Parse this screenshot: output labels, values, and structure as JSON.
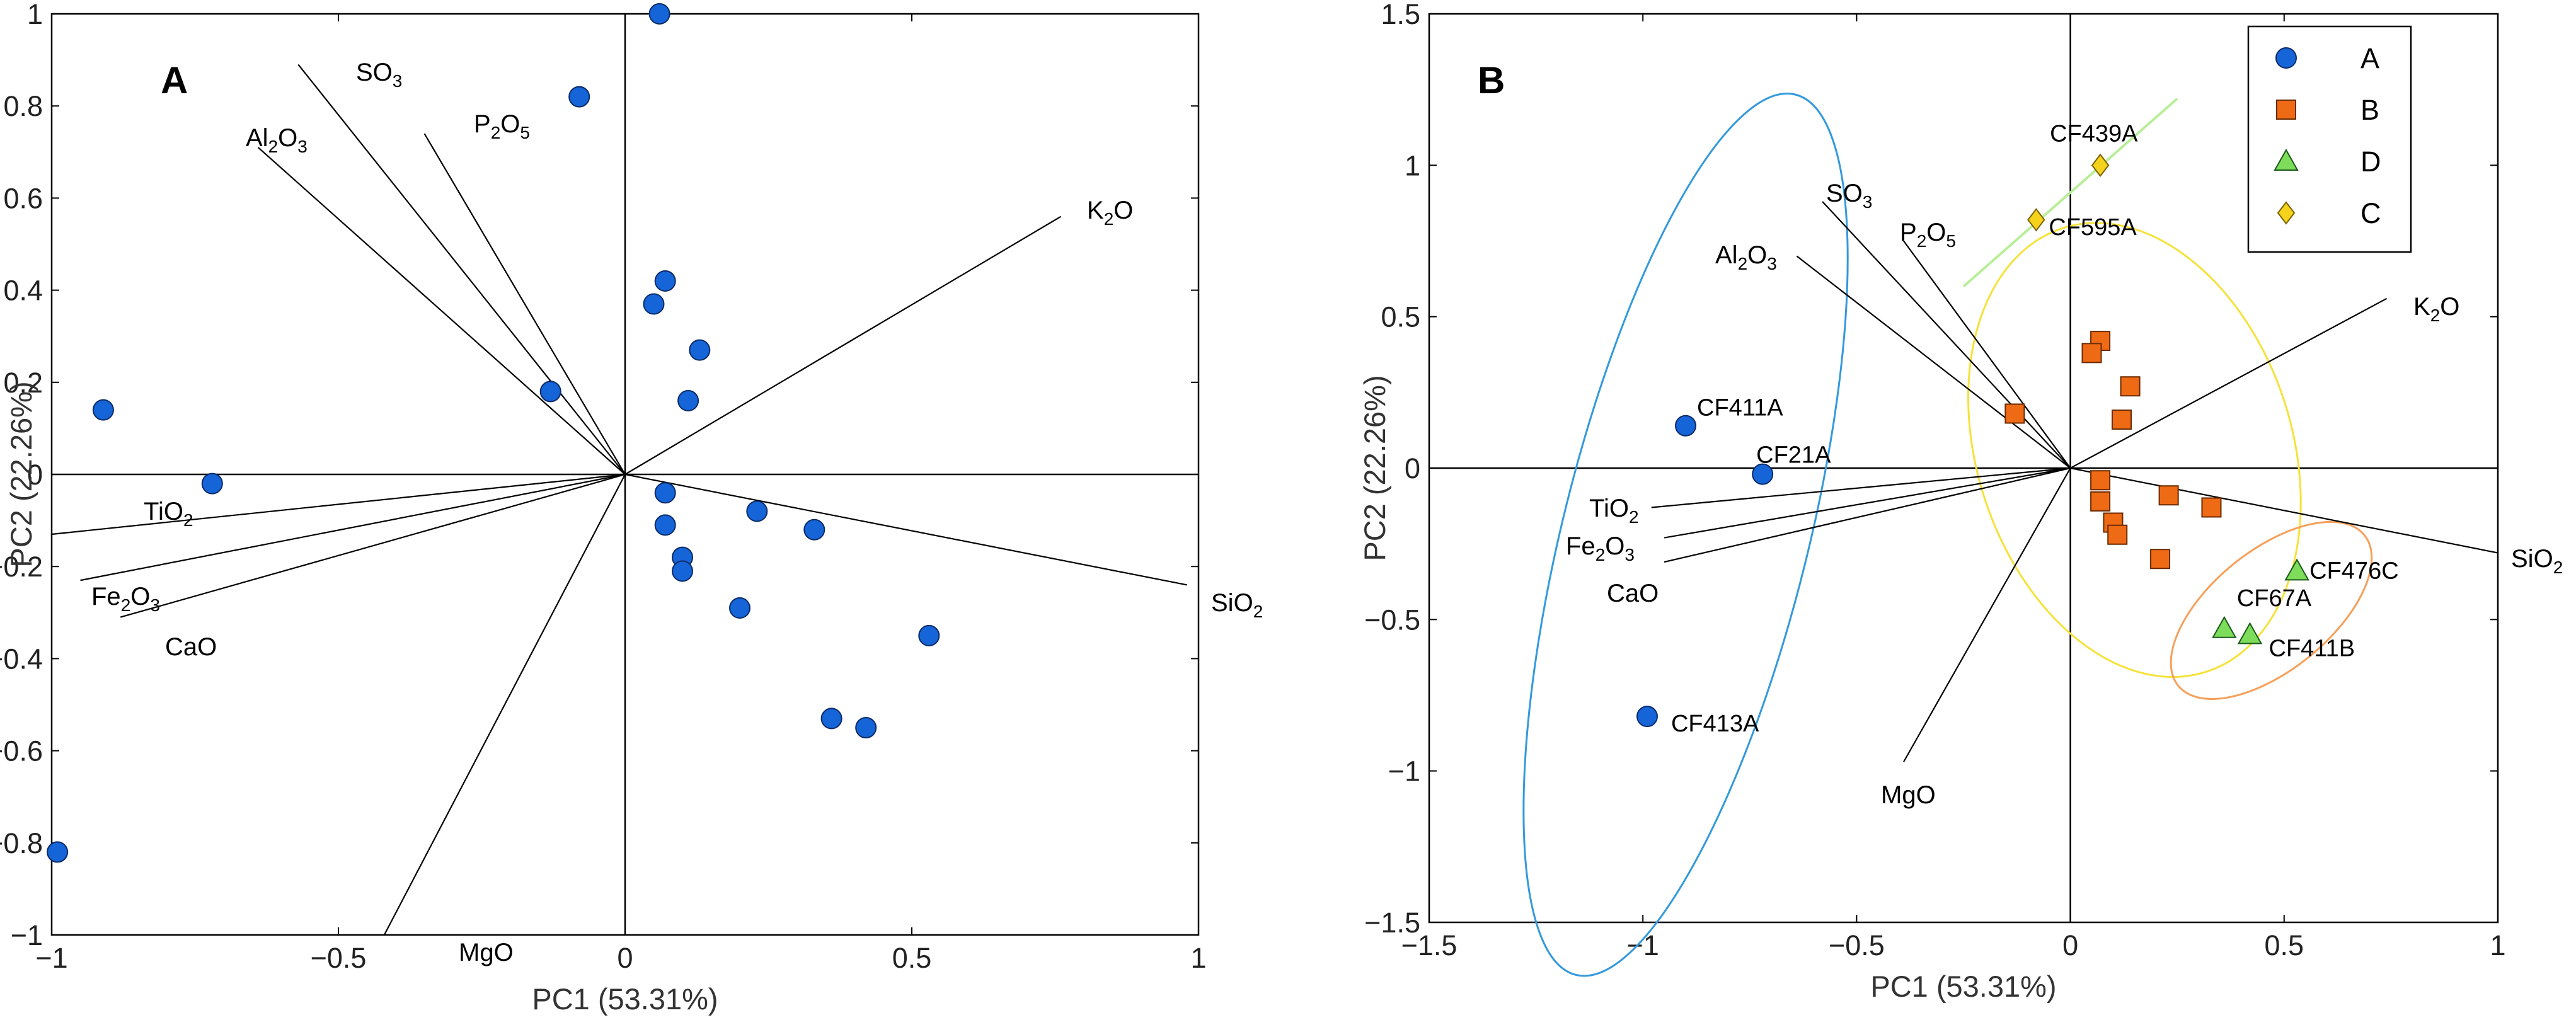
{
  "colors": {
    "A": "#1565d8",
    "B": "#ee6a14",
    "D": "#7ddc5a",
    "C": "#f5d21c",
    "ellipse_A": "#3399dd",
    "ellipse_B": "#f5e23a",
    "ellipse_D": "#f5a05a",
    "line_C": "#b8ee98",
    "axis": "#000000"
  },
  "chart_data": [
    {
      "type": "scatter",
      "panel": "A",
      "xlabel": "PC1 (53.31%)",
      "ylabel": "PC2 (22.26%)",
      "xlim": [
        -1,
        1
      ],
      "ylim": [
        -1,
        1
      ],
      "xticks": [
        -1,
        -0.5,
        0,
        0.5,
        1
      ],
      "xtick_labels": [
        "−1",
        "−0.5",
        "0",
        "0.5",
        "1"
      ],
      "yticks": [
        -1,
        -0.8,
        -0.6,
        -0.4,
        -0.2,
        0,
        0.2,
        0.4,
        0.6,
        0.8,
        1
      ],
      "ytick_labels": [
        "−1",
        "−0.8",
        "−0.6",
        "−0.4",
        "−0.2",
        "0",
        "0.2",
        "0.4",
        "0.6",
        "0.8",
        "1"
      ],
      "loadings": [
        {
          "name": "SO",
          "sub": "3",
          "x": -0.57,
          "y": 0.89
        },
        {
          "name": "P",
          "sub": "2",
          "tail": "O",
          "sub2": "5",
          "x": -0.35,
          "y": 0.74
        },
        {
          "name": "Al",
          "sub": "2",
          "tail": "O",
          "sub2": "3",
          "x": -0.64,
          "y": 0.71
        },
        {
          "name": "K",
          "sub": "2",
          "tail": "O",
          "x": 0.76,
          "y": 0.56
        },
        {
          "name": "TiO",
          "sub": "2",
          "x": -1.0,
          "y": -0.13
        },
        {
          "name": "Fe",
          "sub": "2",
          "tail": "O",
          "sub2": "3",
          "x": -0.95,
          "y": -0.23
        },
        {
          "name": "CaO",
          "x": -0.88,
          "y": -0.31
        },
        {
          "name": "SiO",
          "sub": "2",
          "x": 0.98,
          "y": -0.24
        },
        {
          "name": "MgO",
          "x": -0.42,
          "y": -1.0
        }
      ],
      "series": [
        {
          "group": "A",
          "points": [
            {
              "x": 0.06,
              "y": 1.0
            },
            {
              "x": -0.08,
              "y": 0.82
            },
            {
              "x": 0.07,
              "y": 0.42
            },
            {
              "x": 0.05,
              "y": 0.37
            },
            {
              "x": 0.13,
              "y": 0.27
            },
            {
              "x": -0.13,
              "y": 0.18
            },
            {
              "x": 0.11,
              "y": 0.16
            },
            {
              "x": -0.91,
              "y": 0.14
            },
            {
              "x": -0.72,
              "y": -0.02
            },
            {
              "x": 0.07,
              "y": -0.04
            },
            {
              "x": 0.23,
              "y": -0.08
            },
            {
              "x": 0.07,
              "y": -0.11
            },
            {
              "x": 0.33,
              "y": -0.12
            },
            {
              "x": 0.1,
              "y": -0.18
            },
            {
              "x": 0.1,
              "y": -0.21
            },
            {
              "x": 0.2,
              "y": -0.29
            },
            {
              "x": 0.53,
              "y": -0.35
            },
            {
              "x": 0.36,
              "y": -0.53
            },
            {
              "x": 0.42,
              "y": -0.55
            },
            {
              "x": -0.99,
              "y": -0.82
            }
          ]
        }
      ]
    },
    {
      "type": "scatter",
      "panel": "B",
      "xlabel": "PC1 (53.31%)",
      "ylabel": "PC2 (22.26%)",
      "xlim": [
        -1.5,
        1
      ],
      "ylim": [
        -1.5,
        1.5
      ],
      "xticks": [
        -1.5,
        -1,
        -0.5,
        0,
        0.5,
        1
      ],
      "xtick_labels": [
        "−1.5",
        "−1",
        "−0.5",
        "0",
        "0.5",
        "1"
      ],
      "yticks": [
        -1.5,
        -1,
        -0.5,
        0,
        0.5,
        1,
        1.5
      ],
      "ytick_labels": [
        "−1.5",
        "−1",
        "−0.5",
        "0",
        "0.5",
        "1",
        "1.5"
      ],
      "legend_position": "top-right",
      "loadings": [
        {
          "name": "SO",
          "sub": "3",
          "x": -0.58,
          "y": 0.88
        },
        {
          "name": "P",
          "sub": "2",
          "tail": "O",
          "sub2": "5",
          "x": -0.39,
          "y": 0.75
        },
        {
          "name": "Al",
          "sub": "2",
          "tail": "O",
          "sub2": "3",
          "x": -0.64,
          "y": 0.7
        },
        {
          "name": "K",
          "sub": "2",
          "tail": "O",
          "x": 0.74,
          "y": 0.56
        },
        {
          "name": "TiO",
          "sub": "2",
          "x": -0.98,
          "y": -0.13
        },
        {
          "name": "Fe",
          "sub": "2",
          "tail": "O",
          "sub2": "3",
          "x": -0.95,
          "y": -0.23
        },
        {
          "name": "CaO",
          "x": -0.95,
          "y": -0.31
        },
        {
          "name": "SiO",
          "sub": "2",
          "x": 1.0,
          "y": -0.28
        },
        {
          "name": "MgO",
          "x": -0.39,
          "y": -0.97
        }
      ],
      "series": [
        {
          "name": "A",
          "marker": "circle",
          "points": [
            {
              "x": -0.9,
              "y": 0.14,
              "label": "CF411A"
            },
            {
              "x": -0.72,
              "y": -0.02,
              "label": "CF21A"
            },
            {
              "x": -0.99,
              "y": -0.82,
              "label": "CF413A"
            }
          ]
        },
        {
          "name": "B",
          "marker": "square",
          "points": [
            {
              "x": 0.07,
              "y": 0.42
            },
            {
              "x": 0.05,
              "y": 0.38
            },
            {
              "x": 0.14,
              "y": 0.27
            },
            {
              "x": -0.13,
              "y": 0.18
            },
            {
              "x": 0.12,
              "y": 0.16
            },
            {
              "x": 0.07,
              "y": -0.04
            },
            {
              "x": 0.23,
              "y": -0.09
            },
            {
              "x": 0.07,
              "y": -0.11
            },
            {
              "x": 0.33,
              "y": -0.13
            },
            {
              "x": 0.1,
              "y": -0.18
            },
            {
              "x": 0.11,
              "y": -0.22
            },
            {
              "x": 0.21,
              "y": -0.3
            }
          ]
        },
        {
          "name": "D",
          "marker": "triangle",
          "points": [
            {
              "x": 0.53,
              "y": -0.34,
              "label": "CF476C"
            },
            {
              "x": 0.36,
              "y": -0.53,
              "label": "CF67A"
            },
            {
              "x": 0.42,
              "y": -0.55,
              "label": "CF411B"
            }
          ]
        },
        {
          "name": "C",
          "marker": "diamond",
          "points": [
            {
              "x": 0.07,
              "y": 1.0,
              "label": "CF439A"
            },
            {
              "x": -0.08,
              "y": 0.82,
              "label": "CF595A"
            }
          ]
        }
      ]
    }
  ]
}
